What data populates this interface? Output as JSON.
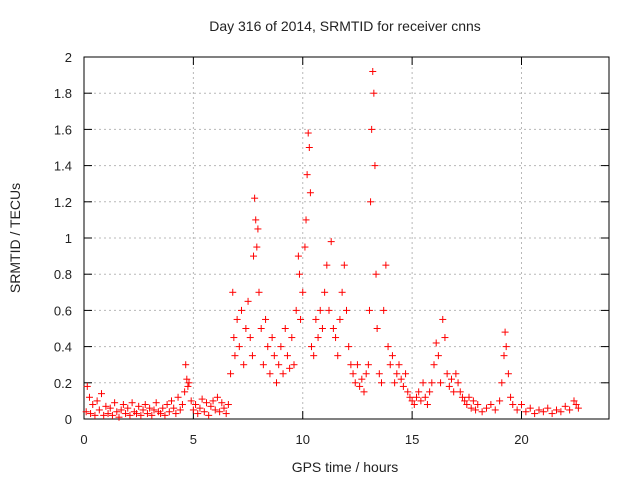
{
  "chart_data": {
    "type": "scatter",
    "title": "Day 316 of 2014, SRMTID for receiver cnns",
    "xlabel": "GPS time / hours",
    "ylabel": "SRMTID / TECUs",
    "xlim": [
      0,
      24
    ],
    "ylim": [
      0,
      2
    ],
    "xticks": [
      0,
      5,
      10,
      15,
      20
    ],
    "yticks": [
      0,
      0.2,
      0.4,
      0.6,
      0.8,
      1,
      1.2,
      1.4,
      1.6,
      1.8,
      2
    ],
    "xtick_labels": [
      "0",
      "5",
      "10",
      "15",
      "20"
    ],
    "ytick_labels": [
      "0",
      "0.2",
      "0.4",
      "0.6",
      "0.8",
      "1",
      "1.2",
      "1.4",
      "1.6",
      "1.8",
      "2"
    ],
    "grid": true,
    "marker": "+",
    "series": [
      {
        "name": "SRMTID",
        "color": "#ff0000",
        "points": [
          [
            0.1,
            0.04
          ],
          [
            0.15,
            0.18
          ],
          [
            0.25,
            0.12
          ],
          [
            0.3,
            0.03
          ],
          [
            0.4,
            0.08
          ],
          [
            0.5,
            0.02
          ],
          [
            0.6,
            0.1
          ],
          [
            0.7,
            0.05
          ],
          [
            0.8,
            0.14
          ],
          [
            0.9,
            0.02
          ],
          [
            1.0,
            0.07
          ],
          [
            1.1,
            0.03
          ],
          [
            1.2,
            0.06
          ],
          [
            1.3,
            0.02
          ],
          [
            1.4,
            0.09
          ],
          [
            1.5,
            0.04
          ],
          [
            1.6,
            0.01
          ],
          [
            1.7,
            0.05
          ],
          [
            1.8,
            0.08
          ],
          [
            1.9,
            0.03
          ],
          [
            2.0,
            0.06
          ],
          [
            2.1,
            0.02
          ],
          [
            2.2,
            0.09
          ],
          [
            2.3,
            0.04
          ],
          [
            2.4,
            0.03
          ],
          [
            2.5,
            0.07
          ],
          [
            2.6,
            0.02
          ],
          [
            2.7,
            0.05
          ],
          [
            2.8,
            0.08
          ],
          [
            2.9,
            0.03
          ],
          [
            3.0,
            0.06
          ],
          [
            3.1,
            0.02
          ],
          [
            3.2,
            0.05
          ],
          [
            3.3,
            0.09
          ],
          [
            3.4,
            0.04
          ],
          [
            3.5,
            0.03
          ],
          [
            3.6,
            0.06
          ],
          [
            3.7,
            0.02
          ],
          [
            3.8,
            0.08
          ],
          [
            3.9,
            0.04
          ],
          [
            4.0,
            0.1
          ],
          [
            4.1,
            0.06
          ],
          [
            4.2,
            0.03
          ],
          [
            4.3,
            0.12
          ],
          [
            4.4,
            0.05
          ],
          [
            4.5,
            0.08
          ],
          [
            4.6,
            0.15
          ],
          [
            4.65,
            0.3
          ],
          [
            4.7,
            0.22
          ],
          [
            4.75,
            0.18
          ],
          [
            4.8,
            0.2
          ],
          [
            4.9,
            0.1
          ],
          [
            5.0,
            0.05
          ],
          [
            5.1,
            0.08
          ],
          [
            5.2,
            0.03
          ],
          [
            5.3,
            0.06
          ],
          [
            5.4,
            0.11
          ],
          [
            5.5,
            0.04
          ],
          [
            5.6,
            0.09
          ],
          [
            5.7,
            0.02
          ],
          [
            5.8,
            0.07
          ],
          [
            5.9,
            0.1
          ],
          [
            6.0,
            0.05
          ],
          [
            6.1,
            0.12
          ],
          [
            6.2,
            0.04
          ],
          [
            6.3,
            0.09
          ],
          [
            6.4,
            0.06
          ],
          [
            6.5,
            0.03
          ],
          [
            6.6,
            0.08
          ],
          [
            6.7,
            0.25
          ],
          [
            6.8,
            0.7
          ],
          [
            6.85,
            0.45
          ],
          [
            6.9,
            0.35
          ],
          [
            7.0,
            0.55
          ],
          [
            7.1,
            0.4
          ],
          [
            7.2,
            0.6
          ],
          [
            7.3,
            0.3
          ],
          [
            7.4,
            0.5
          ],
          [
            7.5,
            0.65
          ],
          [
            7.6,
            0.45
          ],
          [
            7.7,
            0.35
          ],
          [
            7.75,
            0.9
          ],
          [
            7.8,
            1.22
          ],
          [
            7.85,
            1.1
          ],
          [
            7.9,
            0.95
          ],
          [
            7.95,
            1.05
          ],
          [
            8.0,
            0.7
          ],
          [
            8.1,
            0.5
          ],
          [
            8.2,
            0.3
          ],
          [
            8.3,
            0.55
          ],
          [
            8.4,
            0.4
          ],
          [
            8.5,
            0.25
          ],
          [
            8.6,
            0.45
          ],
          [
            8.7,
            0.35
          ],
          [
            8.8,
            0.2
          ],
          [
            8.9,
            0.3
          ],
          [
            9.0,
            0.4
          ],
          [
            9.1,
            0.25
          ],
          [
            9.2,
            0.5
          ],
          [
            9.3,
            0.35
          ],
          [
            9.4,
            0.28
          ],
          [
            9.5,
            0.45
          ],
          [
            9.6,
            0.3
          ],
          [
            9.7,
            0.6
          ],
          [
            9.8,
            0.9
          ],
          [
            9.85,
            0.8
          ],
          [
            9.9,
            0.55
          ],
          [
            10.0,
            0.7
          ],
          [
            10.1,
            0.95
          ],
          [
            10.15,
            1.1
          ],
          [
            10.2,
            1.35
          ],
          [
            10.25,
            1.58
          ],
          [
            10.3,
            1.5
          ],
          [
            10.35,
            1.25
          ],
          [
            10.4,
            0.4
          ],
          [
            10.5,
            0.35
          ],
          [
            10.6,
            0.55
          ],
          [
            10.7,
            0.45
          ],
          [
            10.8,
            0.6
          ],
          [
            10.9,
            0.5
          ],
          [
            11.0,
            0.7
          ],
          [
            11.1,
            0.85
          ],
          [
            11.2,
            0.6
          ],
          [
            11.3,
            0.98
          ],
          [
            11.4,
            0.5
          ],
          [
            11.5,
            0.45
          ],
          [
            11.6,
            0.35
          ],
          [
            11.7,
            0.55
          ],
          [
            11.8,
            0.7
          ],
          [
            11.9,
            0.85
          ],
          [
            12.0,
            0.6
          ],
          [
            12.1,
            0.4
          ],
          [
            12.2,
            0.3
          ],
          [
            12.3,
            0.25
          ],
          [
            12.4,
            0.2
          ],
          [
            12.5,
            0.3
          ],
          [
            12.6,
            0.18
          ],
          [
            12.7,
            0.22
          ],
          [
            12.8,
            0.15
          ],
          [
            12.9,
            0.25
          ],
          [
            13.0,
            0.3
          ],
          [
            13.05,
            0.6
          ],
          [
            13.1,
            1.2
          ],
          [
            13.15,
            1.6
          ],
          [
            13.2,
            1.92
          ],
          [
            13.25,
            1.8
          ],
          [
            13.3,
            1.4
          ],
          [
            13.35,
            0.8
          ],
          [
            13.4,
            0.5
          ],
          [
            13.5,
            0.25
          ],
          [
            13.6,
            0.2
          ],
          [
            13.7,
            0.6
          ],
          [
            13.8,
            0.85
          ],
          [
            13.9,
            0.4
          ],
          [
            14.0,
            0.3
          ],
          [
            14.1,
            0.35
          ],
          [
            14.2,
            0.2
          ],
          [
            14.3,
            0.25
          ],
          [
            14.4,
            0.3
          ],
          [
            14.5,
            0.22
          ],
          [
            14.6,
            0.18
          ],
          [
            14.7,
            0.25
          ],
          [
            14.8,
            0.15
          ],
          [
            14.9,
            0.12
          ],
          [
            15.0,
            0.1
          ],
          [
            15.1,
            0.08
          ],
          [
            15.2,
            0.12
          ],
          [
            15.3,
            0.15
          ],
          [
            15.4,
            0.1
          ],
          [
            15.5,
            0.2
          ],
          [
            15.6,
            0.12
          ],
          [
            15.7,
            0.08
          ],
          [
            15.8,
            0.15
          ],
          [
            15.9,
            0.2
          ],
          [
            16.0,
            0.3
          ],
          [
            16.1,
            0.42
          ],
          [
            16.2,
            0.35
          ],
          [
            16.3,
            0.2
          ],
          [
            16.4,
            0.55
          ],
          [
            16.5,
            0.45
          ],
          [
            16.6,
            0.25
          ],
          [
            16.7,
            0.18
          ],
          [
            16.8,
            0.22
          ],
          [
            16.9,
            0.15
          ],
          [
            17.0,
            0.25
          ],
          [
            17.1,
            0.2
          ],
          [
            17.2,
            0.15
          ],
          [
            17.3,
            0.12
          ],
          [
            17.4,
            0.1
          ],
          [
            17.5,
            0.08
          ],
          [
            17.6,
            0.12
          ],
          [
            17.7,
            0.06
          ],
          [
            17.8,
            0.1
          ],
          [
            17.9,
            0.05
          ],
          [
            18.0,
            0.08
          ],
          [
            18.2,
            0.04
          ],
          [
            18.4,
            0.06
          ],
          [
            18.6,
            0.08
          ],
          [
            18.8,
            0.05
          ],
          [
            19.0,
            0.1
          ],
          [
            19.1,
            0.2
          ],
          [
            19.2,
            0.35
          ],
          [
            19.25,
            0.48
          ],
          [
            19.3,
            0.4
          ],
          [
            19.4,
            0.25
          ],
          [
            19.5,
            0.12
          ],
          [
            19.6,
            0.08
          ],
          [
            19.8,
            0.05
          ],
          [
            20.0,
            0.08
          ],
          [
            20.2,
            0.04
          ],
          [
            20.4,
            0.06
          ],
          [
            20.6,
            0.03
          ],
          [
            20.8,
            0.05
          ],
          [
            21.0,
            0.04
          ],
          [
            21.2,
            0.06
          ],
          [
            21.4,
            0.03
          ],
          [
            21.6,
            0.05
          ],
          [
            21.8,
            0.04
          ],
          [
            22.0,
            0.07
          ],
          [
            22.2,
            0.05
          ],
          [
            22.4,
            0.1
          ],
          [
            22.5,
            0.08
          ],
          [
            22.6,
            0.06
          ]
        ]
      }
    ]
  }
}
